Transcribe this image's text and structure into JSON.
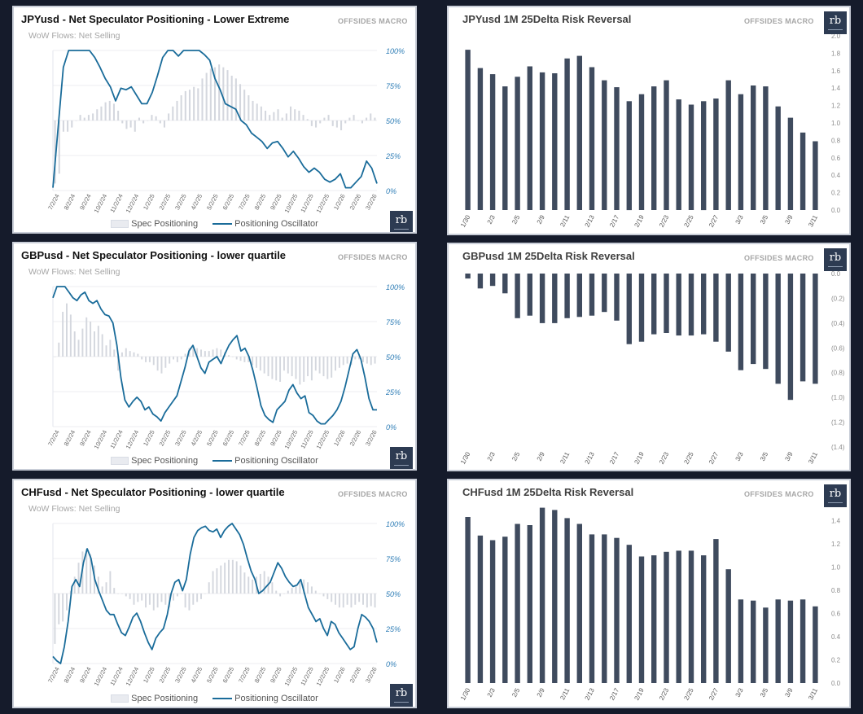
{
  "brand": "OFFSIDES MACRO",
  "logo_text": "rb",
  "colors": {
    "background": "#151b2b",
    "oscillator_line": "#1a6c9a",
    "positioning_bars": "#d4d7de",
    "rr_bars": "#3f4b5e",
    "axis_labels_blue": "#2e7db6"
  },
  "positioning_charts": [
    {
      "title": "JPYusd - Net Speculator Positioning - Lower Extreme",
      "subtitle": "WoW Flows: Net Selling",
      "legend": [
        "Spec Positioning",
        "Positioning Oscillator"
      ],
      "chart_data": {
        "type": "line",
        "x_ticks": [
          "7/2/24",
          "8/2/24",
          "9/2/24",
          "10/2/24",
          "11/2/24",
          "12/2/24",
          "1/2/25",
          "2/2/25",
          "3/2/25",
          "4/2/25",
          "5/2/25",
          "6/2/25",
          "7/2/25",
          "8/2/25",
          "9/2/25",
          "10/2/25",
          "11/2/25",
          "12/2/25",
          "1/2/26",
          "2/2/26",
          "3/2/26"
        ],
        "y_ticks": [
          "0%",
          "25%",
          "50%",
          "75%",
          "100%"
        ],
        "ylim": [
          0,
          100
        ],
        "series": [
          {
            "values": [
              2,
              45,
              88,
              100,
              100,
              100,
              100,
              100,
              95,
              88,
              80,
              74,
              64,
              73,
              72,
              74,
              68,
              62,
              62,
              70,
              82,
              95,
              100,
              100,
              96,
              100,
              100,
              100,
              100,
              97,
              93,
              80,
              72,
              62,
              60,
              58,
              50,
              47,
              41,
              38,
              35,
              30,
              34,
              35,
              30,
              24,
              28,
              23,
              17,
              13,
              16,
              13,
              8,
              6,
              8,
              12,
              2,
              2,
              6,
              10,
              21,
              16,
              5
            ]
          },
          {
            "values": [
              5,
              12,
              42,
              42,
              45,
              50,
              54,
              52,
              54,
              55,
              58,
              60,
              63,
              64,
              62,
              57,
              48,
              44,
              45,
              42,
              52,
              48,
              50,
              54,
              53,
              48,
              45,
              55,
              60,
              64,
              68,
              71,
              72,
              74,
              73,
              80,
              84,
              87,
              88,
              90,
              88,
              86,
              82,
              80,
              76,
              72,
              68,
              64,
              62,
              60,
              57,
              54,
              56,
              58,
              52,
              55,
              60,
              58,
              57,
              54,
              51,
              46,
              45,
              48,
              52,
              54,
              46,
              45,
              43,
              48,
              52,
              54,
              50,
              48,
              52,
              55,
              52
            ]
          }
        ]
      }
    },
    {
      "title": "GBPusd - Net Speculator Positioning - lower quartile",
      "subtitle": "WoW Flows: Net Selling",
      "legend": [
        "Spec Positioning",
        "Positioning Oscillator"
      ],
      "chart_data": {
        "type": "line",
        "x_ticks": [
          "7/2/24",
          "8/2/24",
          "9/2/24",
          "10/2/24",
          "11/2/24",
          "12/2/24",
          "1/2/25",
          "2/2/25",
          "3/2/25",
          "4/2/25",
          "5/2/25",
          "6/2/25",
          "7/2/25",
          "8/2/25",
          "9/2/25",
          "10/2/25",
          "11/2/25",
          "12/2/25",
          "1/2/26",
          "2/2/26",
          "3/2/26"
        ],
        "y_ticks": [
          "0%",
          "25%",
          "50%",
          "75%",
          "100%"
        ],
        "ylim": [
          0,
          100
        ],
        "series": [
          {
            "values": [
              92,
              100,
              100,
              100,
              96,
              92,
              90,
              94,
              96,
              90,
              88,
              90,
              84,
              80,
              79,
              74,
              58,
              35,
              19,
              14,
              18,
              21,
              18,
              12,
              14,
              9,
              7,
              4,
              10,
              14,
              18,
              22,
              32,
              42,
              54,
              58,
              50,
              42,
              38,
              46,
              48,
              50,
              45,
              52,
              58,
              62,
              65,
              54,
              56,
              50,
              40,
              28,
              15,
              8,
              5,
              3,
              12,
              15,
              18,
              26,
              30,
              24,
              20,
              22,
              10,
              8,
              4,
              2,
              2,
              5,
              8,
              12,
              18,
              28,
              40,
              52,
              55,
              48,
              35,
              20,
              12,
              12
            ]
          },
          {
            "values": [
              50,
              60,
              82,
              88,
              80,
              68,
              62,
              70,
              78,
              75,
              68,
              72,
              66,
              58,
              62,
              55,
              40,
              53,
              56,
              54,
              53,
              52,
              48,
              46,
              46,
              44,
              40,
              38,
              42,
              45,
              48,
              46,
              48,
              52,
              56,
              57,
              56,
              55,
              54,
              54,
              55,
              56,
              55,
              53,
              51,
              50,
              48,
              47,
              46,
              46,
              44,
              42,
              40,
              38,
              36,
              34,
              33,
              32,
              40,
              38,
              36,
              34,
              30,
              32,
              36,
              33,
              40,
              38,
              36,
              34,
              35,
              40,
              42,
              44,
              45,
              44,
              48,
              48,
              46,
              45,
              44,
              45
            ]
          }
        ]
      }
    },
    {
      "title": "CHFusd - Net Speculator Positioning - lower quartile",
      "subtitle": "WoW Flows: Net Selling",
      "legend": [
        "Spec Positioning",
        "Positioning Oscillator"
      ],
      "chart_data": {
        "type": "line",
        "x_ticks": [
          "7/2/24",
          "8/2/24",
          "9/2/24",
          "10/2/24",
          "11/2/24",
          "12/2/24",
          "1/2/25",
          "2/2/25",
          "3/2/25",
          "4/2/25",
          "5/2/25",
          "6/2/25",
          "7/2/25",
          "8/2/25",
          "9/2/25",
          "10/2/25",
          "11/2/25",
          "12/2/25",
          "1/2/26",
          "2/2/26",
          "3/2/26"
        ],
        "y_ticks": [
          "0%",
          "25%",
          "50%",
          "75%",
          "100%"
        ],
        "ylim": [
          0,
          100
        ],
        "series": [
          {
            "values": [
              5,
              2,
              0,
              12,
              30,
              55,
              60,
              55,
              72,
              82,
              75,
              60,
              52,
              45,
              38,
              35,
              35,
              28,
              22,
              20,
              26,
              33,
              36,
              30,
              22,
              15,
              10,
              18,
              22,
              25,
              35,
              50,
              58,
              60,
              52,
              60,
              78,
              90,
              95,
              97,
              98,
              95,
              94,
              96,
              90,
              95,
              98,
              100,
              96,
              92,
              85,
              75,
              66,
              60,
              50,
              52,
              55,
              58,
              65,
              72,
              68,
              62,
              58,
              55,
              56,
              60,
              50,
              40,
              35,
              30,
              32,
              25,
              20,
              30,
              28,
              22,
              18,
              14,
              10,
              12,
              25,
              35,
              33,
              30,
              25,
              15
            ]
          },
          {
            "values": [
              14,
              28,
              30,
              38,
              52,
              62,
              72,
              80,
              82,
              78,
              70,
              62,
              55,
              58,
              66,
              54,
              50,
              50,
              48,
              46,
              42,
              44,
              45,
              40,
              42,
              38,
              40,
              44,
              42,
              40,
              45,
              48,
              50,
              40,
              38,
              42,
              44,
              46,
              50,
              58,
              66,
              68,
              70,
              72,
              74,
              74,
              73,
              70,
              65,
              62,
              60,
              62,
              64,
              66,
              62,
              58,
              52,
              48,
              50,
              52,
              54,
              56,
              58,
              60,
              58,
              55,
              52,
              50,
              48,
              46,
              44,
              42,
              40,
              40,
              42,
              40,
              42,
              44,
              42,
              40,
              41,
              40
            ]
          }
        ]
      }
    }
  ],
  "risk_reversal_charts": [
    {
      "title": "JPYusd 1M 25Delta Risk Reversal",
      "chart_data": {
        "type": "bar",
        "categories": [
          "1/30",
          "",
          "2/3",
          "",
          "2/5",
          "",
          "2/9",
          "",
          "2/11",
          "",
          "2/13",
          "",
          "2/17",
          "",
          "2/19",
          "",
          "2/23",
          "",
          "2/25",
          "",
          "2/27",
          "",
          "3/3",
          "",
          "3/5",
          "",
          "3/9",
          "",
          "3/11"
        ],
        "x_tick_labels": [
          "1/30",
          "2/3",
          "2/5",
          "2/9",
          "2/11",
          "2/13",
          "2/17",
          "2/19",
          "2/23",
          "2/25",
          "2/27",
          "3/3",
          "3/5",
          "3/9",
          "3/11"
        ],
        "values": [
          1.84,
          1.63,
          1.56,
          1.42,
          1.53,
          1.65,
          1.58,
          1.57,
          1.74,
          1.77,
          1.64,
          1.49,
          1.41,
          1.25,
          1.33,
          1.42,
          1.49,
          1.27,
          1.21,
          1.25,
          1.28,
          1.49,
          1.33,
          1.43,
          1.42,
          1.19,
          1.06,
          0.89,
          0.79
        ],
        "y_ticks": [
          "0.0",
          "0.2",
          "0.4",
          "0.6",
          "0.8",
          "1.0",
          "1.2",
          "1.4",
          "1.6",
          "1.8",
          "2.0"
        ],
        "ylim": [
          0,
          2.0
        ]
      }
    },
    {
      "title": "GBPusd 1M 25Delta Risk Reversal",
      "chart_data": {
        "type": "bar",
        "categories": [
          "1/30",
          "",
          "2/3",
          "",
          "2/5",
          "",
          "2/9",
          "",
          "2/11",
          "",
          "2/13",
          "",
          "2/17",
          "",
          "2/19",
          "",
          "2/23",
          "",
          "2/25",
          "",
          "2/27",
          "",
          "3/3",
          "",
          "3/5",
          "",
          "3/9",
          "",
          "3/11"
        ],
        "x_tick_labels": [
          "1/30",
          "2/3",
          "2/5",
          "2/9",
          "2/11",
          "2/13",
          "2/17",
          "2/19",
          "2/23",
          "2/25",
          "2/27",
          "3/3",
          "3/5",
          "3/9",
          "3/11"
        ],
        "values": [
          -0.04,
          -0.12,
          -0.1,
          -0.16,
          -0.36,
          -0.34,
          -0.4,
          -0.4,
          -0.36,
          -0.35,
          -0.34,
          -0.31,
          -0.38,
          -0.57,
          -0.55,
          -0.49,
          -0.48,
          -0.5,
          -0.5,
          -0.49,
          -0.55,
          -0.63,
          -0.78,
          -0.73,
          -0.77,
          -0.89,
          -1.02,
          -0.87,
          -0.89
        ],
        "y_ticks": [
          "0.0",
          "(0.2)",
          "(0.4)",
          "(0.6)",
          "(0.8)",
          "(1.0)",
          "(1.2)",
          "(1.4)"
        ],
        "ylim": [
          -1.4,
          0
        ]
      }
    },
    {
      "title": "CHFusd 1M 25Delta Risk Reversal",
      "chart_data": {
        "type": "bar",
        "categories": [
          "1/30",
          "",
          "2/3",
          "",
          "2/5",
          "",
          "2/9",
          "",
          "2/11",
          "",
          "2/13",
          "",
          "2/17",
          "",
          "2/19",
          "",
          "2/23",
          "",
          "2/25",
          "",
          "2/27",
          "",
          "3/3",
          "",
          "3/5",
          "",
          "3/9",
          "",
          "3/11"
        ],
        "x_tick_labels": [
          "1/30",
          "2/3",
          "2/5",
          "2/9",
          "2/11",
          "2/13",
          "2/17",
          "2/19",
          "2/23",
          "2/25",
          "2/27",
          "3/3",
          "3/5",
          "3/9",
          "3/11"
        ],
        "values": [
          1.43,
          1.27,
          1.23,
          1.26,
          1.37,
          1.36,
          1.51,
          1.49,
          1.42,
          1.37,
          1.28,
          1.28,
          1.25,
          1.19,
          1.09,
          1.1,
          1.13,
          1.14,
          1.14,
          1.1,
          1.24,
          0.98,
          0.72,
          0.71,
          0.65,
          0.72,
          0.71,
          0.72,
          0.66
        ],
        "y_ticks": [
          "0.0",
          "0.2",
          "0.4",
          "0.6",
          "0.8",
          "1.0",
          "1.2",
          "1.4"
        ],
        "ylim": [
          0,
          1.5
        ]
      }
    }
  ]
}
